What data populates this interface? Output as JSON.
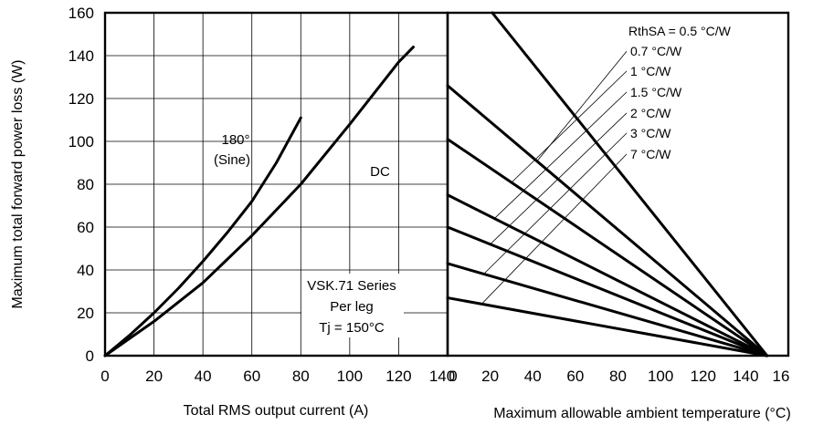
{
  "chart_data": [
    {
      "type": "line",
      "xlabel": "Total RMS output current (A)",
      "ylabel": "Maximum total forward power loss (W)",
      "xlim": [
        0,
        140
      ],
      "ylim": [
        0,
        160
      ],
      "x_ticks": [
        "0",
        "20",
        "40",
        "60",
        "80",
        "100",
        "120",
        "140"
      ],
      "y_ticks": [
        "0",
        "20",
        "40",
        "60",
        "80",
        "100",
        "120",
        "140",
        "160"
      ],
      "grid": true,
      "series": [
        {
          "name": "180° (Sine)",
          "x": [
            0,
            10,
            20,
            30,
            40,
            50,
            60,
            70,
            80
          ],
          "y": [
            0,
            9.5,
            20,
            31.5,
            44,
            57.5,
            72,
            90,
            111
          ]
        },
        {
          "name": "DC",
          "x": [
            0,
            20,
            40,
            60,
            80,
            100,
            120,
            126
          ],
          "y": [
            0,
            16,
            34,
            56,
            80,
            108,
            137,
            144
          ]
        }
      ],
      "annotations": {
        "sine_line1": "180°",
        "sine_line2": "(Sine)",
        "dc": "DC",
        "series_label": "VSK.71 Series",
        "per_leg": "Per leg",
        "tj": "Tj = 150°C"
      }
    },
    {
      "type": "line",
      "xlabel": "Maximum allowable ambient temperature (°C)",
      "xlim": [
        0,
        160
      ],
      "ylim": [
        0,
        160
      ],
      "x_ticks": [
        "0",
        "20",
        "40",
        "60",
        "80",
        "100",
        "120",
        "140",
        "16"
      ],
      "grid": false,
      "series": [
        {
          "name": "RthSA = 0.5 °C/W",
          "x": [
            0,
            150
          ],
          "y": [
            186,
            0
          ]
        },
        {
          "name": "0.7 °C/W",
          "x": [
            0,
            150
          ],
          "y": [
            126,
            0
          ]
        },
        {
          "name": "1 °C/W",
          "x": [
            0,
            150
          ],
          "y": [
            101,
            0
          ]
        },
        {
          "name": "1.5 °C/W",
          "x": [
            0,
            150
          ],
          "y": [
            75,
            0
          ]
        },
        {
          "name": "2 °C/W",
          "x": [
            0,
            150
          ],
          "y": [
            60,
            0
          ]
        },
        {
          "name": "3 °C/W",
          "x": [
            0,
            150
          ],
          "y": [
            43,
            0
          ]
        },
        {
          "name": "7 °C/W",
          "x": [
            0,
            150
          ],
          "y": [
            27,
            0
          ]
        }
      ]
    }
  ]
}
